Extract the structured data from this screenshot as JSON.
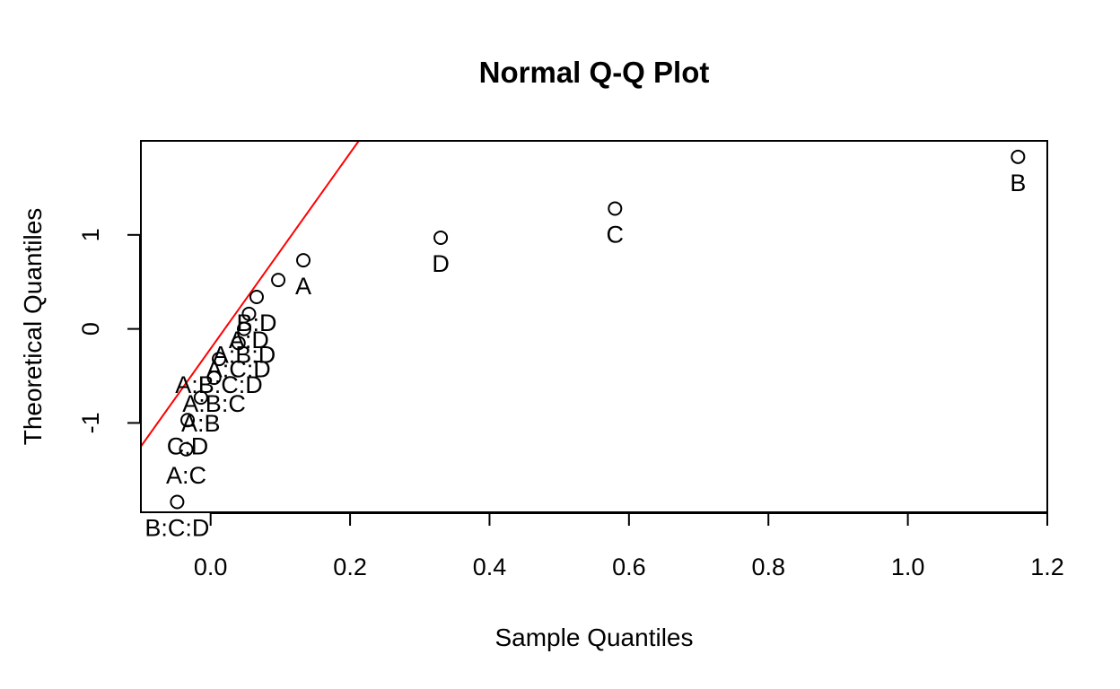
{
  "chart_data": {
    "type": "scatter",
    "title": "Normal Q-Q Plot",
    "xlabel": "Sample Quantiles",
    "ylabel": "Theoretical Quantiles",
    "xlim": [
      -0.1,
      1.2
    ],
    "ylim": [
      -1.95,
      2.0
    ],
    "xticks": [
      "0.0",
      "0.2",
      "0.4",
      "0.6",
      "0.8",
      "1.0",
      "1.2"
    ],
    "xtick_values": [
      0.0,
      0.2,
      0.4,
      0.6,
      0.8,
      1.0,
      1.2
    ],
    "yticks": [
      "-1",
      "0",
      "1"
    ],
    "ytick_values": [
      -1,
      0,
      1
    ],
    "grid": false,
    "reference_line": {
      "intercept": -0.21,
      "slope": 10.4,
      "color": "#ff0000"
    },
    "points": [
      {
        "x": -0.048,
        "y": -1.84,
        "label": "B:C:D"
      },
      {
        "x": -0.035,
        "y": -1.28,
        "label": "A:C"
      },
      {
        "x": -0.033,
        "y": -0.97,
        "label": "C:D"
      },
      {
        "x": -0.014,
        "y": -0.73,
        "label": "A:B"
      },
      {
        "x": 0.005,
        "y": -0.52,
        "label": "A:B:C"
      },
      {
        "x": 0.012,
        "y": -0.32,
        "label": "A:B:C:D"
      },
      {
        "x": 0.04,
        "y": -0.15,
        "label": "A:C:D"
      },
      {
        "x": 0.048,
        "y": 0.0,
        "label": "A:B:D"
      },
      {
        "x": 0.055,
        "y": 0.16,
        "label": "A:D"
      },
      {
        "x": 0.066,
        "y": 0.34,
        "label": "B:D"
      },
      {
        "x": 0.097,
        "y": 0.52,
        "label": ""
      },
      {
        "x": 0.133,
        "y": 0.73,
        "label": "A"
      },
      {
        "x": 0.33,
        "y": 0.97,
        "label": "D"
      },
      {
        "x": 0.58,
        "y": 1.28,
        "label": "C"
      },
      {
        "x": 1.158,
        "y": 1.83,
        "label": "B"
      }
    ]
  }
}
